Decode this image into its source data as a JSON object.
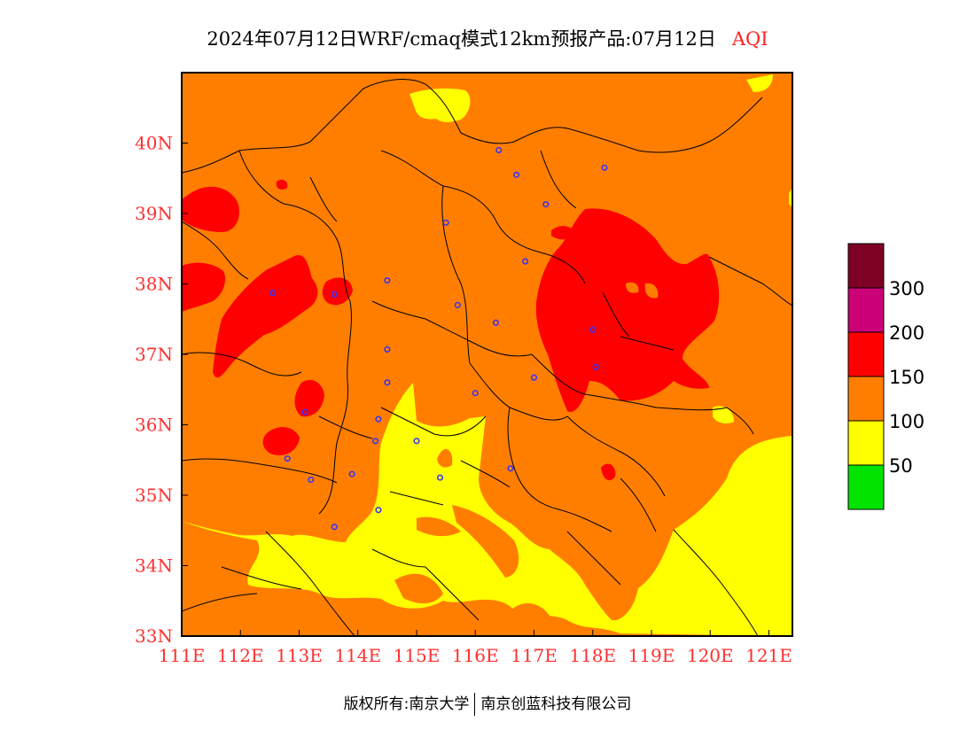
{
  "title": {
    "main": "2024年07月12日WRF/cmaq模式12km预报产品:07月12日",
    "product": "AQI"
  },
  "map": {
    "lon_range": [
      111,
      121.4
    ],
    "lat_range": [
      33,
      41
    ],
    "x_ticks": [
      "111E",
      "112E",
      "113E",
      "114E",
      "115E",
      "116E",
      "117E",
      "118E",
      "119E",
      "120E",
      "121E"
    ],
    "y_ticks": [
      "33N",
      "34N",
      "35N",
      "36N",
      "37N",
      "38N",
      "39N",
      "40N"
    ],
    "background_level": "100-150",
    "stations": [
      [
        116.4,
        39.9
      ],
      [
        116.7,
        39.55
      ],
      [
        118.2,
        39.65
      ],
      [
        117.2,
        39.13
      ],
      [
        115.5,
        38.87
      ],
      [
        116.85,
        38.32
      ],
      [
        112.55,
        37.87
      ],
      [
        113.6,
        37.85
      ],
      [
        114.5,
        38.05
      ],
      [
        115.7,
        37.7
      ],
      [
        116.35,
        37.45
      ],
      [
        118.0,
        37.35
      ],
      [
        114.5,
        37.07
      ],
      [
        118.05,
        36.82
      ],
      [
        117.0,
        36.67
      ],
      [
        114.5,
        36.6
      ],
      [
        116.0,
        36.45
      ],
      [
        113.1,
        36.18
      ],
      [
        114.35,
        36.08
      ],
      [
        114.3,
        35.77
      ],
      [
        115.0,
        35.77
      ],
      [
        112.8,
        35.52
      ],
      [
        116.6,
        35.38
      ],
      [
        113.9,
        35.3
      ],
      [
        113.2,
        35.22
      ],
      [
        115.4,
        35.25
      ],
      [
        114.35,
        34.79
      ],
      [
        113.6,
        34.55
      ]
    ]
  },
  "legend": {
    "bins": [
      {
        "color": "#00e400",
        "label": "50"
      },
      {
        "color": "#ffff00",
        "label": "100"
      },
      {
        "color": "#ff7e00",
        "label": "150"
      },
      {
        "color": "#ff0000",
        "label": "200"
      },
      {
        "color": "#cc0077",
        "label": "300"
      },
      {
        "color": "#7e0023",
        "label": ""
      }
    ]
  },
  "copyright": {
    "left": "版权所有:南京大学",
    "right": "南京创蓝科技有限公司"
  }
}
